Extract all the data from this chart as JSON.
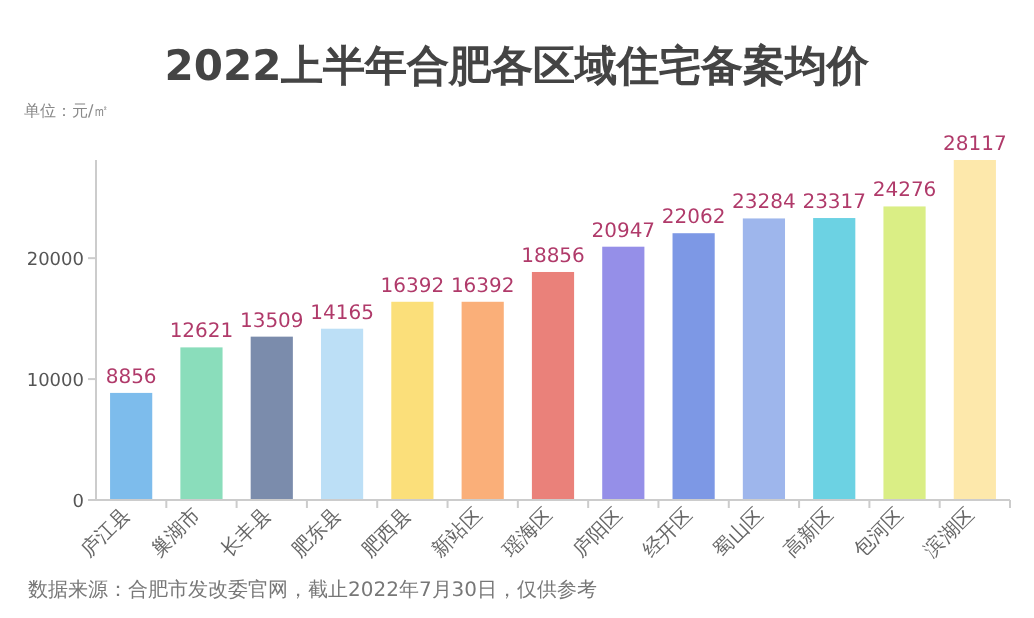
{
  "chart_data": {
    "type": "bar",
    "title": "2022上半年合肥各区域住宅备案均价",
    "ylabel": "单位：元/㎡",
    "categories": [
      "庐江县",
      "巢湖市",
      "长丰县",
      "肥东县",
      "肥西县",
      "新站区",
      "瑶海区",
      "庐阳区",
      "经开区",
      "蜀山区",
      "高新区",
      "包河区",
      "滨湖区"
    ],
    "values": [
      8856,
      12621,
      13509,
      14165,
      16392,
      16392,
      18856,
      20947,
      22062,
      23284,
      23317,
      24276,
      28117
    ],
    "colors": [
      "#6fb5ea",
      "#7dd9b4",
      "#6d7fa3",
      "#b5dcf5",
      "#fbdc6c",
      "#f9a66a",
      "#e8736b",
      "#8a83e6",
      "#6f8de2",
      "#93aeea",
      "#5ccde0",
      "#d6ec78",
      "#fde6a2"
    ],
    "ylim": [
      0,
      28117
    ],
    "yticks": [
      0,
      10000,
      20000
    ],
    "data_labels": true,
    "annotations": [
      "数据来源：合肥市发改委官网，截止2022年7月30日，仅供参考"
    ]
  }
}
